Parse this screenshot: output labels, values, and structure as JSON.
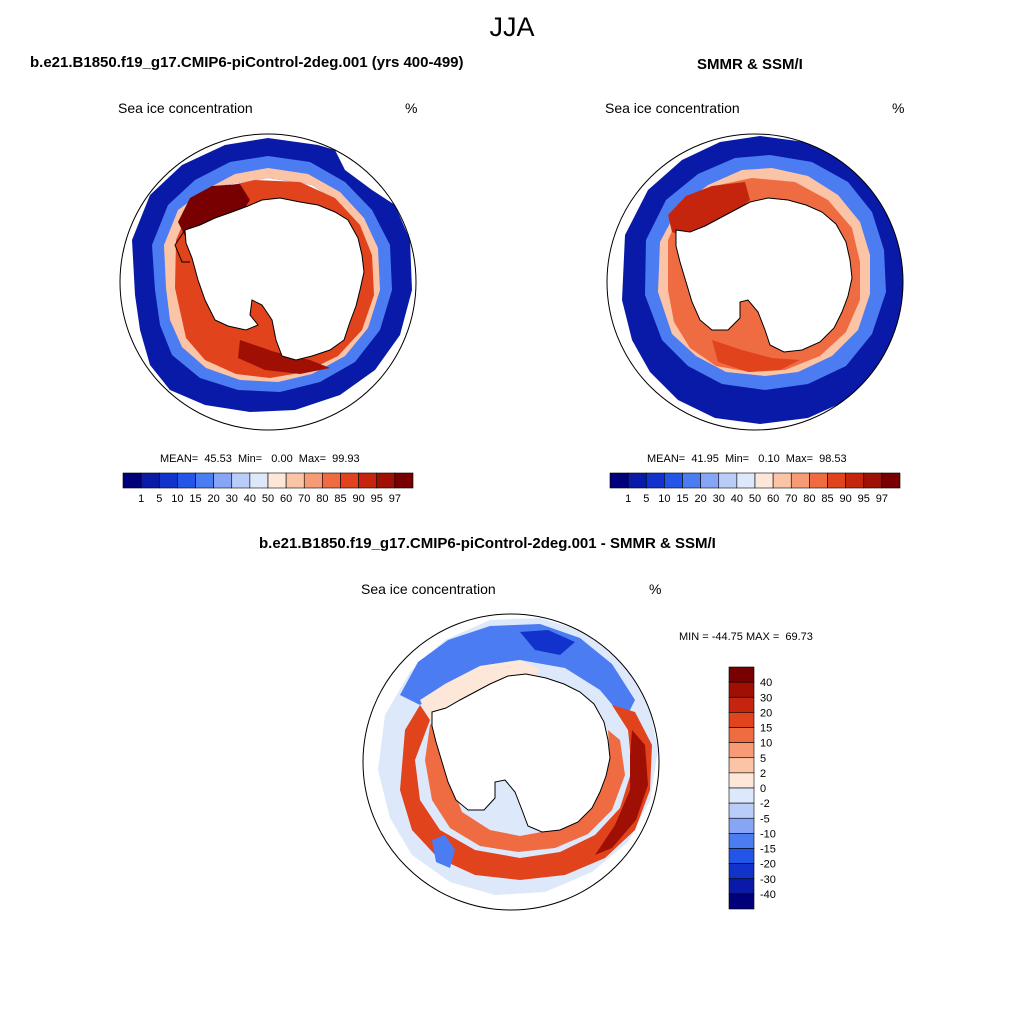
{
  "figure": {
    "title": "JJA",
    "panels": [
      {
        "title": "b.e21.B1850.f19_g17.CMIP6-piControl-2deg.001 (yrs 400-499)",
        "variable_label": "Sea ice concentration",
        "units": "%",
        "stats": "MEAN=  45.53  Min=   0.00  Max=  99.93"
      },
      {
        "title": "SMMR & SSM/I",
        "variable_label": "Sea ice concentration",
        "units": "%",
        "stats": "MEAN=  41.95  Min=   0.10  Max=  98.53"
      },
      {
        "title": "b.e21.B1850.f19_g17.CMIP6-piControl-2deg.001 - SMMR & SSM/I",
        "variable_label": "Sea ice concentration",
        "units": "%",
        "stats": "MIN = -44.75 MAX =  69.73"
      }
    ],
    "colorbar_conc": {
      "ticks": [
        "1",
        "5",
        "10",
        "15",
        "20",
        "30",
        "40",
        "50",
        "60",
        "70",
        "80",
        "85",
        "90",
        "95",
        "97"
      ],
      "colors": [
        "#00007a",
        "#0a1aa8",
        "#1133cc",
        "#2255e8",
        "#4c7cf2",
        "#86a6f5",
        "#b9cdf8",
        "#dde8fb",
        "#fde7d8",
        "#fbc4a6",
        "#f69b76",
        "#ef6c43",
        "#e1431c",
        "#c4250c",
        "#a00f04",
        "#780000"
      ]
    },
    "colorbar_diff": {
      "ticks_top_to_bottom": [
        "40",
        "30",
        "20",
        "15",
        "10",
        "5",
        "2",
        "0",
        "-2",
        "-5",
        "-10",
        "-15",
        "-20",
        "-30",
        "-40"
      ],
      "colors_top_to_bottom": [
        "#780000",
        "#a00f04",
        "#c4250c",
        "#e1431c",
        "#ef6c43",
        "#f69b76",
        "#fbc4a6",
        "#fde7d8",
        "#dde8fb",
        "#b9cdf8",
        "#86a6f5",
        "#4c7cf2",
        "#2255e8",
        "#1133cc",
        "#0a1aa8",
        "#00007a"
      ]
    }
  }
}
